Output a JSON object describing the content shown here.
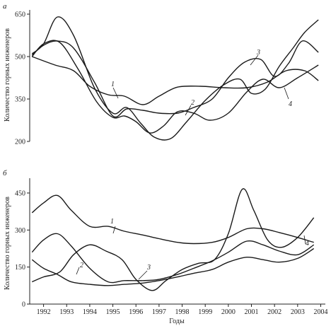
{
  "figure": {
    "xlabel": "Годы"
  },
  "chart_data": [
    {
      "type": "line",
      "panel": "a",
      "panel_label": "а",
      "ylabel": "Количество горных инженеров",
      "x_ticks": [
        1992,
        1993,
        1994,
        1995,
        1996,
        1997,
        1998,
        1999,
        2000,
        2001,
        2002,
        2003,
        2004
      ],
      "xlim": [
        1991.4,
        2004.2
      ],
      "ylim": [
        200,
        665
      ],
      "y_ticks": [
        200,
        350,
        500,
        650
      ],
      "grid": false,
      "series": [
        {
          "name": "1",
          "x": [
            1991.5,
            1992.5,
            1993.3,
            1994.0,
            1994.8,
            1995.5,
            1996.3,
            1997.0,
            1997.8,
            1998.8,
            1999.8,
            2000.8,
            2001.7,
            2002.5,
            2003.3,
            2003.9
          ],
          "y": [
            500,
            470,
            450,
            395,
            365,
            360,
            330,
            360,
            392,
            395,
            390,
            390,
            410,
            450,
            450,
            415
          ]
        },
        {
          "name": "2",
          "x": [
            1991.5,
            1992.0,
            1992.7,
            1993.5,
            1994.3,
            1995.0,
            1995.5,
            1996.0,
            1996.6,
            1997.2,
            1997.8,
            1998.5,
            1999.2,
            2000.0,
            2000.8,
            2001.5,
            2002.2,
            2003.0,
            2003.9
          ],
          "y": [
            500,
            545,
            550,
            455,
            340,
            285,
            290,
            270,
            230,
            255,
            305,
            300,
            275,
            300,
            375,
            420,
            390,
            425,
            470
          ]
        },
        {
          "name": "3",
          "x": [
            1991.5,
            1992.0,
            1992.6,
            1993.3,
            1994.2,
            1995.0,
            1995.6,
            1996.2,
            1996.8,
            1997.5,
            1998.2,
            1999.0,
            1999.8,
            2000.5,
            2001.0,
            2001.6,
            2002.2,
            2002.8,
            2003.3,
            2003.9
          ],
          "y": [
            510,
            545,
            640,
            575,
            390,
            300,
            320,
            265,
            215,
            210,
            270,
            345,
            400,
            420,
            370,
            385,
            465,
            530,
            585,
            630
          ]
        },
        {
          "name": "4",
          "x": [
            1991.5,
            1992.0,
            1992.6,
            1993.3,
            1994.2,
            1995.0,
            1995.6,
            1996.3,
            1997.0,
            1997.8,
            1998.5,
            1999.3,
            2000.0,
            2000.7,
            2001.4,
            2002.0,
            2002.6,
            2003.2,
            2003.9
          ],
          "y": [
            505,
            540,
            555,
            530,
            410,
            290,
            315,
            310,
            300,
            300,
            320,
            350,
            425,
            480,
            490,
            430,
            475,
            555,
            515
          ]
        }
      ],
      "annotations": [
        "1",
        "2",
        "3",
        "4"
      ]
    },
    {
      "type": "line",
      "panel": "b",
      "panel_label": "б",
      "ylabel": "Количество горных инженеров",
      "x_ticks": [
        1992,
        1993,
        1994,
        1995,
        1996,
        1997,
        1998,
        1999,
        2000,
        2001,
        2002,
        2003,
        2004
      ],
      "xlim": [
        1991.4,
        2004.2
      ],
      "ylim": [
        0,
        510
      ],
      "y_ticks": [
        0,
        150,
        300,
        450
      ],
      "grid": false,
      "series": [
        {
          "name": "1",
          "x": [
            1991.5,
            1992.0,
            1992.6,
            1993.2,
            1994.0,
            1994.8,
            1995.5,
            1996.3,
            1997.0,
            1997.8,
            1998.5,
            1999.3,
            2000.0,
            2000.8,
            2001.5,
            2002.2,
            2003.0,
            2003.7
          ],
          "y": [
            370,
            410,
            440,
            380,
            315,
            315,
            295,
            280,
            265,
            250,
            245,
            250,
            270,
            305,
            305,
            290,
            270,
            250
          ]
        },
        {
          "name": "2",
          "x": [
            1991.5,
            1992.0,
            1992.6,
            1993.2,
            1994.0,
            1994.8,
            1995.5,
            1996.3,
            1997.0,
            1997.8,
            1998.5,
            1999.3,
            2000.0,
            2000.8,
            2001.5,
            2002.2,
            2003.0,
            2003.7
          ],
          "y": [
            180,
            145,
            120,
            90,
            80,
            75,
            80,
            85,
            95,
            110,
            125,
            140,
            170,
            190,
            180,
            170,
            185,
            225
          ]
        },
        {
          "name": "3",
          "x": [
            1991.5,
            1992.0,
            1992.7,
            1993.3,
            1994.0,
            1994.7,
            1995.4,
            1996.0,
            1996.7,
            1997.3,
            1998.0,
            1998.7,
            1999.4,
            2000.0,
            2000.6,
            2001.1,
            2001.7,
            2002.3,
            2003.0,
            2003.7
          ],
          "y": [
            90,
            110,
            130,
            200,
            240,
            215,
            180,
            100,
            55,
            95,
            140,
            165,
            180,
            285,
            465,
            380,
            260,
            230,
            270,
            350
          ]
        },
        {
          "name": "4",
          "x": [
            1991.5,
            1992.0,
            1992.6,
            1993.2,
            1994.0,
            1994.8,
            1995.5,
            1996.3,
            1997.0,
            1997.8,
            1998.5,
            1999.3,
            2000.0,
            2000.8,
            2001.5,
            2002.2,
            2003.0,
            2003.7
          ],
          "y": [
            210,
            260,
            285,
            235,
            145,
            90,
            95,
            95,
            100,
            120,
            145,
            175,
            210,
            255,
            240,
            215,
            200,
            240
          ]
        }
      ],
      "annotations": [
        "1",
        "2",
        "3",
        "4"
      ]
    }
  ]
}
